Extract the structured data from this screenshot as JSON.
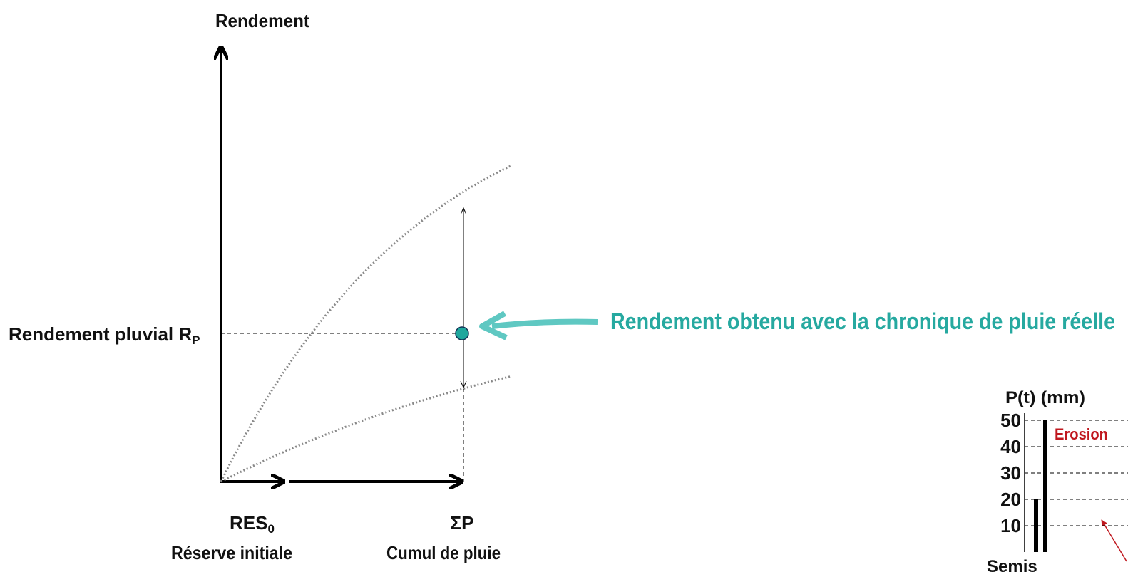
{
  "diagram": {
    "y_axis_label": "Rendement",
    "rp_label": "Rendement pluvial R",
    "rp_sub": "P",
    "res_label": "RES",
    "res_sub": "0",
    "res_caption": "Réserve initiale",
    "sum_label": "ΣP",
    "sum_caption": "Cumul de pluie",
    "callout": "Rendement obtenu avec la chronique de pluie réelle"
  },
  "inset": {
    "y_label": "P(t) (mm)",
    "ylim": [
      0,
      50
    ],
    "yticks": [
      10,
      20,
      30,
      40,
      50
    ],
    "values": [
      20,
      50
    ],
    "annotation": "Erosion",
    "x_label": "Semis"
  }
}
